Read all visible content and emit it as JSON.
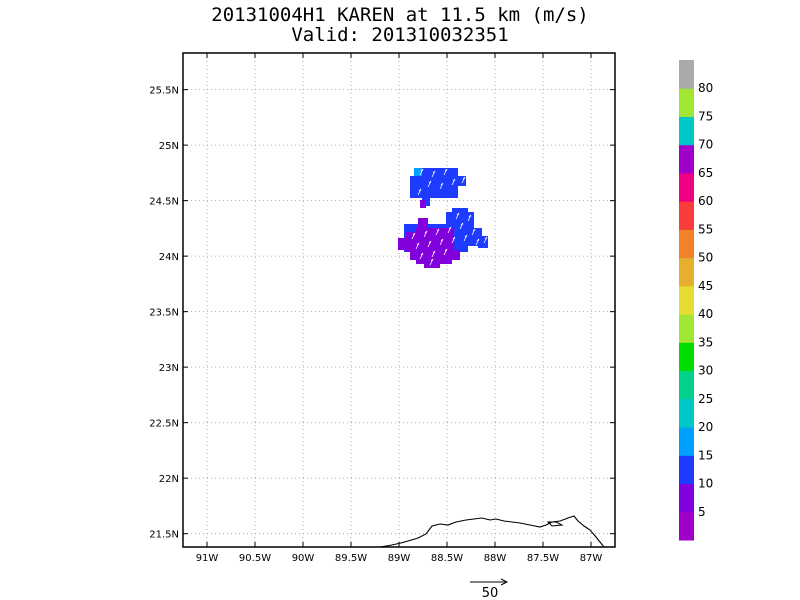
{
  "title": {
    "line1": "20131004H1 KAREN at 11.5 km (m/s)",
    "line2": "Valid: 201310032351"
  },
  "map": {
    "lon_range": [
      -91.25,
      -86.75
    ],
    "lat_range": [
      21.38,
      25.83
    ],
    "lon_ticks": [
      {
        "v": -91.0,
        "label": "91W"
      },
      {
        "v": -90.5,
        "label": "90.5W"
      },
      {
        "v": -90.0,
        "label": "90W"
      },
      {
        "v": -89.5,
        "label": "89.5W"
      },
      {
        "v": -89.0,
        "label": "89W"
      },
      {
        "v": -88.5,
        "label": "88.5W"
      },
      {
        "v": -88.0,
        "label": "88W"
      },
      {
        "v": -87.5,
        "label": "87.5W"
      },
      {
        "v": -87.0,
        "label": "87W"
      }
    ],
    "lat_ticks": [
      {
        "v": 21.5,
        "label": "21.5N"
      },
      {
        "v": 22.0,
        "label": "22N"
      },
      {
        "v": 22.5,
        "label": "22.5N"
      },
      {
        "v": 23.0,
        "label": "23N"
      },
      {
        "v": 23.5,
        "label": "23.5N"
      },
      {
        "v": 24.0,
        "label": "24N"
      },
      {
        "v": 24.5,
        "label": "24.5N"
      },
      {
        "v": 25.0,
        "label": "25N"
      },
      {
        "v": 25.5,
        "label": "25.5N"
      }
    ],
    "gridlines": true,
    "coastline_color": "#000000"
  },
  "colorbar": {
    "labels": [
      "5",
      "10",
      "15",
      "20",
      "25",
      "30",
      "35",
      "40",
      "45",
      "50",
      "55",
      "60",
      "65",
      "70",
      "75",
      "80"
    ],
    "colors": [
      "#a000c8",
      "#8200dc",
      "#1e3cff",
      "#00a0ff",
      "#00c8c8",
      "#00d28c",
      "#00dc00",
      "#a0e632",
      "#e6dc32",
      "#e6af2d",
      "#f08228",
      "#fa3c3c",
      "#f00082",
      "#a000c8",
      "#00c8c8",
      "#a0e632",
      "#aaaaaa"
    ]
  },
  "reference_vector": {
    "label": "50"
  }
}
